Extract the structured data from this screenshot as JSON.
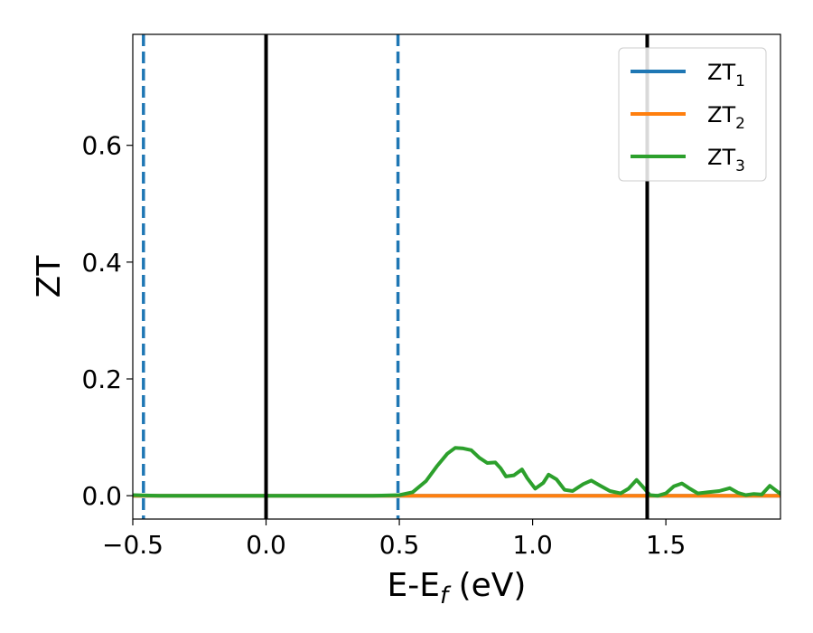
{
  "chart_data": {
    "type": "line",
    "xlabel": {
      "base": "E-E",
      "sub": "f",
      "suffix": " (eV)"
    },
    "ylabel": "ZT",
    "xlim": [
      -0.5,
      1.93
    ],
    "ylim": [
      -0.04,
      0.79
    ],
    "xticks": [
      {
        "value": -0.5,
        "label": "−0.5"
      },
      {
        "value": 0.0,
        "label": "0.0"
      },
      {
        "value": 0.5,
        "label": "0.5"
      },
      {
        "value": 1.0,
        "label": "1.0"
      },
      {
        "value": 1.5,
        "label": "1.5"
      }
    ],
    "yticks": [
      {
        "value": 0.0,
        "label": "0.0"
      },
      {
        "value": 0.2,
        "label": "0.2"
      },
      {
        "value": 0.4,
        "label": "0.4"
      },
      {
        "value": 0.6,
        "label": "0.6"
      }
    ],
    "grid": false,
    "legend_position": "top-right",
    "series": [
      {
        "name": "ZT",
        "subscript": "1",
        "color": "#1f77b4",
        "x": [
          -0.5,
          1.93
        ],
        "y": [
          0.0,
          0.0
        ]
      },
      {
        "name": "ZT",
        "subscript": "2",
        "color": "#ff7f0e",
        "x": [
          -0.5,
          1.93
        ],
        "y": [
          0.0,
          0.0
        ]
      },
      {
        "name": "ZT",
        "subscript": "3",
        "color": "#2ca02c",
        "x": [
          -0.5,
          -0.4,
          -0.2,
          0.0,
          0.2,
          0.4,
          0.5,
          0.55,
          0.6,
          0.64,
          0.68,
          0.71,
          0.74,
          0.77,
          0.8,
          0.83,
          0.86,
          0.88,
          0.9,
          0.93,
          0.96,
          0.98,
          1.01,
          1.04,
          1.06,
          1.09,
          1.12,
          1.15,
          1.19,
          1.22,
          1.25,
          1.29,
          1.33,
          1.36,
          1.39,
          1.42,
          1.44,
          1.47,
          1.5,
          1.53,
          1.56,
          1.59,
          1.62,
          1.66,
          1.7,
          1.74,
          1.77,
          1.8,
          1.83,
          1.86,
          1.89,
          1.91,
          1.93
        ],
        "y": [
          0.001,
          0.0,
          0.0,
          0.0,
          0.0,
          0.0,
          0.001,
          0.006,
          0.025,
          0.05,
          0.072,
          0.082,
          0.081,
          0.078,
          0.065,
          0.056,
          0.057,
          0.047,
          0.033,
          0.035,
          0.045,
          0.03,
          0.012,
          0.022,
          0.036,
          0.028,
          0.01,
          0.008,
          0.02,
          0.026,
          0.018,
          0.008,
          0.004,
          0.012,
          0.027,
          0.012,
          0.001,
          0.0,
          0.004,
          0.016,
          0.021,
          0.012,
          0.004,
          0.006,
          0.008,
          0.013,
          0.005,
          0.001,
          0.003,
          0.002,
          0.017,
          0.01,
          0.003
        ]
      }
    ],
    "vlines": [
      {
        "x": -0.46,
        "style": "dashed",
        "color": "#1f77b4"
      },
      {
        "x": 0.0,
        "style": "solid",
        "color": "#000000"
      },
      {
        "x": 0.495,
        "style": "dashed",
        "color": "#1f77b4"
      },
      {
        "x": 1.43,
        "style": "solid",
        "color": "#000000"
      }
    ]
  }
}
